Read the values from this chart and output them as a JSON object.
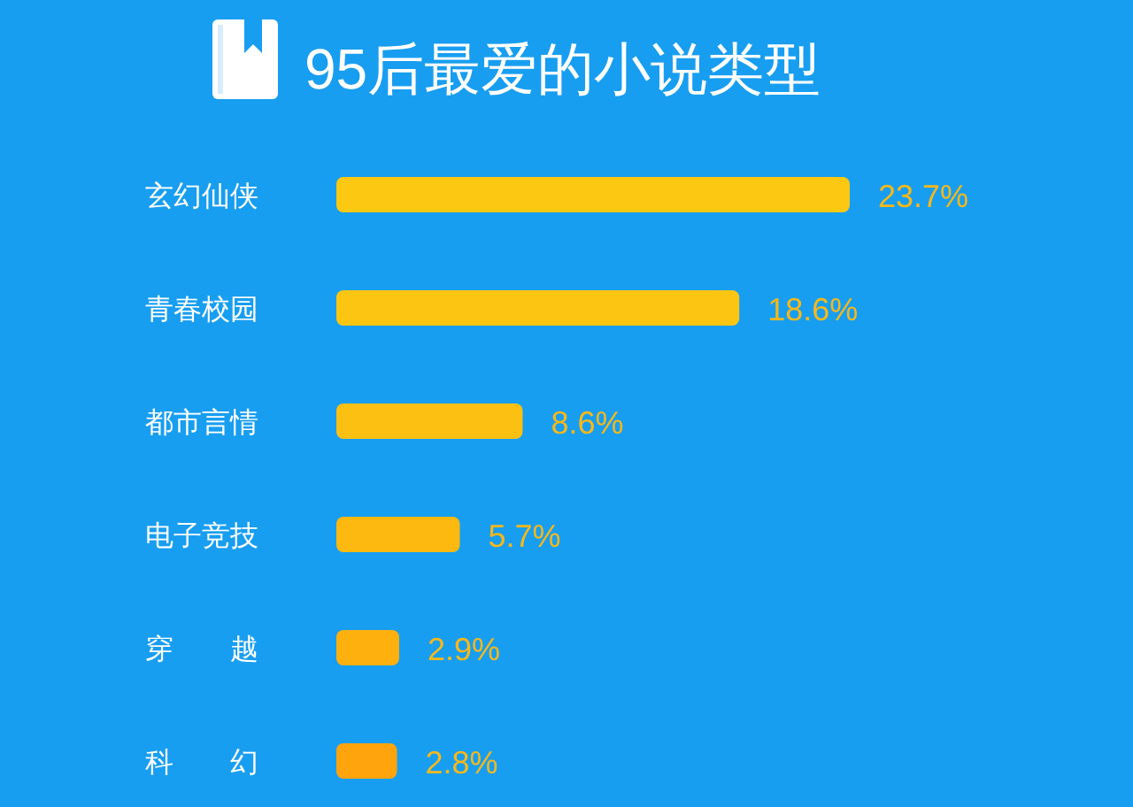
{
  "chart_data": {
    "type": "bar",
    "orientation": "horizontal",
    "title": "95后最爱的小说类型",
    "categories": [
      "玄幻仙侠",
      "青春校园",
      "都市言情",
      "电子竞技",
      "穿　　越",
      "科　　幻"
    ],
    "values": [
      23.7,
      18.6,
      8.6,
      5.7,
      2.9,
      2.8
    ],
    "value_labels": [
      "23.7%",
      "18.6%",
      "8.6%",
      "5.7%",
      "2.9%",
      "2.8%"
    ],
    "colors": [
      "#fcc812",
      "#fcc512",
      "#fcc012",
      "#fdb910",
      "#feb00e",
      "#ffa40c"
    ]
  }
}
